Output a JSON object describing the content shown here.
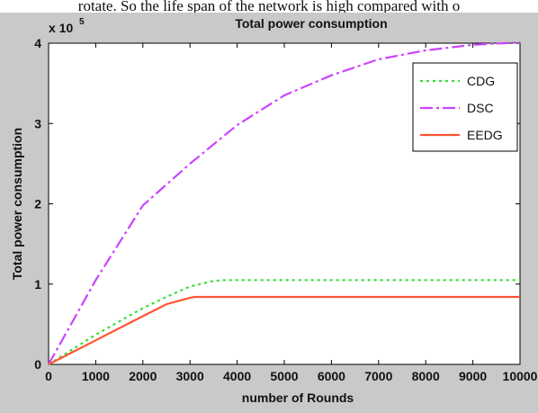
{
  "page_text": "rotate. So the life span of the network is high compared with o",
  "chart_data": {
    "type": "line",
    "title": "Total power consumption",
    "xlabel": "number of Rounds",
    "ylabel": "Total power consumption",
    "y_exponent": "x 10",
    "y_exponent_power": "5",
    "xlim": [
      0,
      10000
    ],
    "ylim": [
      0,
      400000
    ],
    "x_ticks": [
      "0",
      "1000",
      "2000",
      "3000",
      "4000",
      "5000",
      "6000",
      "7000",
      "8000",
      "9000",
      "10000"
    ],
    "y_ticks": [
      "0",
      "1",
      "2",
      "3",
      "4"
    ],
    "legend_position": "top-right",
    "series": [
      {
        "name": "CDG",
        "color": "#33dd33",
        "style": "dotted",
        "x": [
          0,
          1000,
          2000,
          2500,
          3000,
          3500,
          3700,
          4000,
          5000,
          6000,
          7000,
          8000,
          9000,
          10000
        ],
        "y": [
          0,
          37000,
          70000,
          84000,
          97000,
          104000,
          105000,
          105000,
          105000,
          105000,
          105000,
          105000,
          105000,
          105000
        ]
      },
      {
        "name": "DSC",
        "color": "#cc44ff",
        "style": "dashdot",
        "x": [
          0,
          1000,
          2000,
          3000,
          4000,
          5000,
          6000,
          7000,
          8000,
          9000,
          10000
        ],
        "y": [
          0,
          105000,
          198000,
          250000,
          298000,
          335000,
          360000,
          380000,
          391000,
          398000,
          401000
        ]
      },
      {
        "name": "EEDG",
        "color": "#ff5533",
        "style": "solid",
        "x": [
          0,
          1000,
          2000,
          2500,
          3000,
          3100,
          4000,
          5000,
          6000,
          7000,
          8000,
          9000,
          10000
        ],
        "y": [
          0,
          30000,
          60000,
          75000,
          83000,
          84000,
          84000,
          84000,
          84000,
          84000,
          84000,
          84000,
          84000
        ]
      }
    ]
  }
}
